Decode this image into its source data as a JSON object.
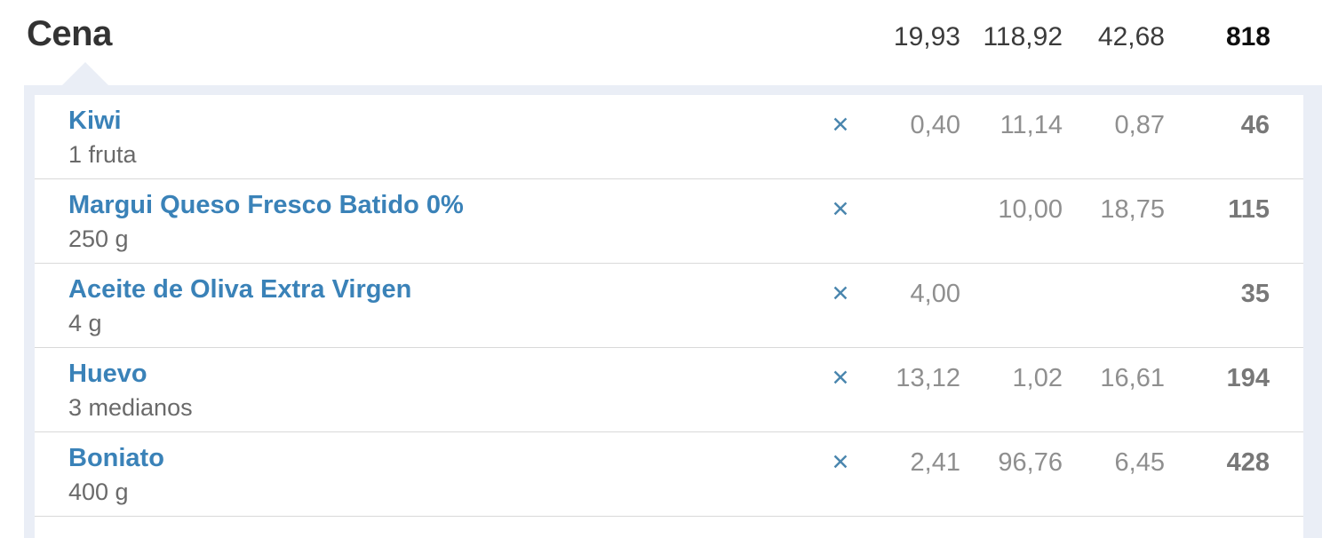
{
  "meal": {
    "title": "Cena",
    "totals": {
      "protein": "19,93",
      "carbs": "118,92",
      "fat": "42,68",
      "calories": "818"
    }
  },
  "icons": {
    "delete": "✕"
  },
  "items": [
    {
      "name": "Kiwi",
      "serving": "1 fruta",
      "protein": "0,40",
      "carbs": "11,14",
      "fat": "0,87",
      "calories": "46"
    },
    {
      "name": "Margui Queso Fresco Batido 0%",
      "serving": "250 g",
      "protein": "",
      "carbs": "10,00",
      "fat": "18,75",
      "calories": "115"
    },
    {
      "name": "Aceite de Oliva Extra Virgen",
      "serving": "4 g",
      "protein": "4,00",
      "carbs": "",
      "fat": "",
      "calories": "35"
    },
    {
      "name": "Huevo",
      "serving": "3 medianos",
      "protein": "13,12",
      "carbs": "1,02",
      "fat": "16,61",
      "calories": "194"
    },
    {
      "name": "Boniato",
      "serving": "400 g",
      "protein": "2,41",
      "carbs": "96,76",
      "fat": "6,45",
      "calories": "428"
    }
  ],
  "colors": {
    "panel_border": "#eaeef6",
    "row_divider": "#d9d9d9",
    "link_blue": "#3a82b8",
    "delete_blue": "#4a86ae",
    "number_gray": "#8f8f8f",
    "calories_gray": "#787878",
    "title_dark": "#333333"
  }
}
